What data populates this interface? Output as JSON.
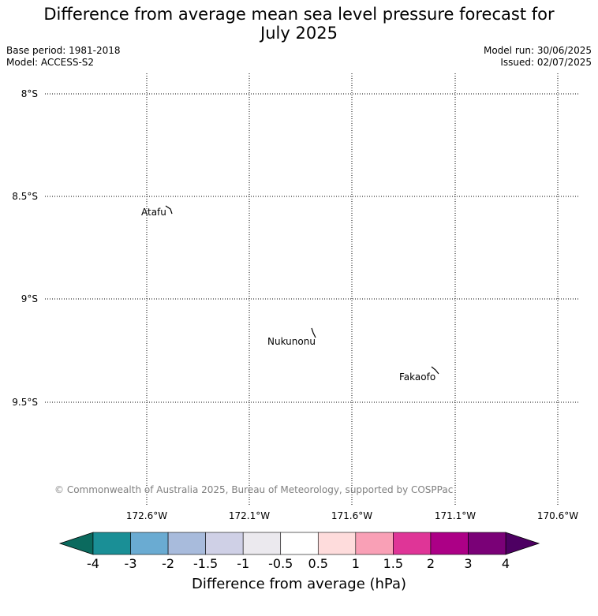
{
  "header": {
    "title_line1": "Difference from average mean sea level pressure forecast for",
    "title_line2": "July 2025",
    "base_period": "Base period: 1981-2018",
    "model": "Model: ACCESS-S2",
    "model_run": "Model run: 30/06/2025",
    "issued": "Issued: 02/07/2025"
  },
  "map": {
    "lat_labels": [
      "8°S",
      "8.5°S",
      "9°S",
      "9.5°S"
    ],
    "lon_labels": [
      "172.6°W",
      "172.1°W",
      "171.6°W",
      "171.1°W",
      "170.6°W"
    ],
    "places": [
      "Atafu",
      "Nukunonu",
      "Fakaofo"
    ],
    "copyright": "© Commonwealth of Australia 2025, Bureau of Meteorology, supported by COSPPac"
  },
  "colorbar": {
    "ticks": [
      "-4",
      "-3",
      "-2",
      "-1.5",
      "-1",
      "-0.5",
      "0.5",
      "1",
      "1.5",
      "2",
      "3",
      "4"
    ],
    "colors": [
      "#1a8f96",
      "#6aabd2",
      "#a8bbdc",
      "#cfd0e6",
      "#ebe9ee",
      "#ffffff",
      "#fedcdc",
      "#f9a0b6",
      "#df3597",
      "#ac0086",
      "#7a0177"
    ],
    "under_color": "#0b6a5e",
    "over_color": "#4d0062",
    "label": "Difference from average (hPa)"
  }
}
